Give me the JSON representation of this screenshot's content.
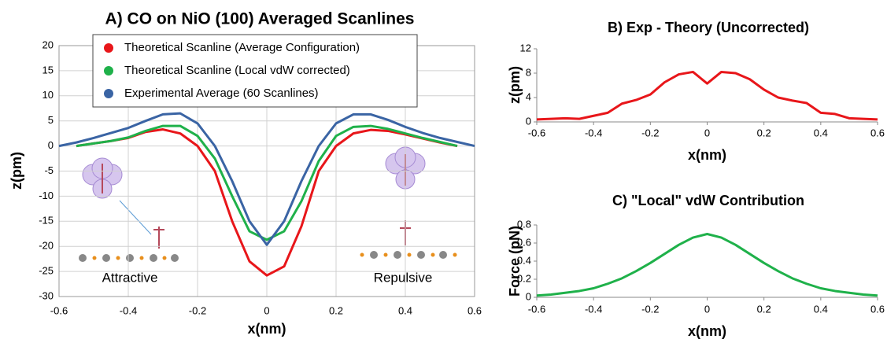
{
  "chart_data": [
    {
      "type": "line",
      "title": "A) CO on NiO (100) Averaged Scanlines",
      "x_label": "x(nm)",
      "y_label": "z(pm)",
      "x": [
        -0.6,
        -0.55,
        -0.5,
        -0.45,
        -0.4,
        -0.35,
        -0.3,
        -0.25,
        -0.2,
        -0.15,
        -0.1,
        -0.05,
        0,
        0.05,
        0.1,
        0.15,
        0.2,
        0.25,
        0.3,
        0.35,
        0.4,
        0.45,
        0.5,
        0.55,
        0.6
      ],
      "series": [
        {
          "name": "Theoretical Scanline (Average Configuration)",
          "color": "#e8161a",
          "values": [
            null,
            0,
            0.5,
            1,
            1.6,
            2.8,
            3.3,
            2.5,
            0,
            -5,
            -15,
            -23,
            -25.8,
            -24,
            -16,
            -5,
            0,
            2.5,
            3.2,
            3,
            2.3,
            1.5,
            0.7,
            0,
            null
          ]
        },
        {
          "name": "Theoretical Scanline (Local vdW corrected)",
          "color": "#1fb14a",
          "values": [
            null,
            0,
            0.5,
            1,
            1.7,
            3,
            4,
            4,
            2,
            -2.5,
            -10,
            -17,
            -18.7,
            -17,
            -11,
            -3,
            2,
            3.8,
            4,
            3.4,
            2.5,
            1.6,
            0.8,
            0,
            null
          ]
        },
        {
          "name": "Experimental Average (60 Scanlines)",
          "color": "#3a64a4",
          "values": [
            0,
            0.7,
            1.6,
            2.6,
            3.6,
            5,
            6.3,
            6.5,
            4.5,
            0,
            -7,
            -15,
            -19.7,
            -15,
            -7,
            0,
            4.5,
            6.3,
            6.3,
            5.2,
            3.8,
            2.6,
            1.6,
            0.8,
            0
          ]
        }
      ],
      "xlim": [
        -0.6,
        0.6
      ],
      "xticks": [
        -0.6,
        -0.4,
        -0.2,
        0,
        0.2,
        0.4,
        0.6
      ],
      "ylim": [
        -30,
        20
      ],
      "yticks": [
        -30,
        -25,
        -20,
        -15,
        -10,
        -5,
        0,
        5,
        10,
        15,
        20
      ],
      "grid": true,
      "legend": "upper-left",
      "annotations": [
        "Attractive",
        "Repulsive"
      ]
    },
    {
      "type": "line",
      "title": "B) Exp - Theory (Uncorrected)",
      "x_label": "x(nm)",
      "y_label": "z(pm)",
      "x": [
        -0.6,
        -0.55,
        -0.5,
        -0.45,
        -0.4,
        -0.35,
        -0.3,
        -0.25,
        -0.2,
        -0.15,
        -0.1,
        -0.05,
        0,
        0.05,
        0.1,
        0.15,
        0.2,
        0.25,
        0.3,
        0.35,
        0.4,
        0.45,
        0.5,
        0.55,
        0.6
      ],
      "series": [
        {
          "color": "#e8161a",
          "values": [
            0.4,
            0.5,
            0.6,
            0.5,
            1.0,
            1.5,
            3.0,
            3.6,
            4.5,
            6.5,
            7.8,
            8.2,
            6.3,
            8.2,
            8.0,
            7.0,
            5.3,
            4.0,
            3.5,
            3.1,
            1.5,
            1.3,
            0.6,
            0.5,
            0.4
          ]
        }
      ],
      "xlim": [
        -0.6,
        0.6
      ],
      "xticks": [
        -0.6,
        -0.4,
        -0.2,
        0,
        0.2,
        0.4,
        0.6
      ],
      "ylim": [
        0,
        12
      ],
      "yticks": [
        0,
        4,
        8,
        12
      ],
      "grid": false
    },
    {
      "type": "line",
      "title": "C) \"Local\" vdW Contribution",
      "x_label": "x(nm)",
      "y_label": "Force (pN)",
      "x": [
        -0.6,
        -0.55,
        -0.5,
        -0.45,
        -0.4,
        -0.35,
        -0.3,
        -0.25,
        -0.2,
        -0.15,
        -0.1,
        -0.05,
        0,
        0.05,
        0.1,
        0.15,
        0.2,
        0.25,
        0.3,
        0.35,
        0.4,
        0.45,
        0.5,
        0.55,
        0.6
      ],
      "series": [
        {
          "color": "#1fb14a",
          "values": [
            0.02,
            0.03,
            0.05,
            0.07,
            0.1,
            0.15,
            0.21,
            0.29,
            0.38,
            0.48,
            0.58,
            0.66,
            0.7,
            0.66,
            0.58,
            0.48,
            0.38,
            0.29,
            0.21,
            0.15,
            0.1,
            0.07,
            0.05,
            0.03,
            0.02
          ]
        }
      ],
      "xlim": [
        -0.6,
        0.6
      ],
      "xticks": [
        -0.6,
        -0.4,
        -0.2,
        0,
        0.2,
        0.4,
        0.6
      ],
      "ylim": [
        0,
        0.8
      ],
      "yticks": [
        0,
        0.2,
        0.4,
        0.6,
        0.8
      ],
      "grid": false
    }
  ]
}
